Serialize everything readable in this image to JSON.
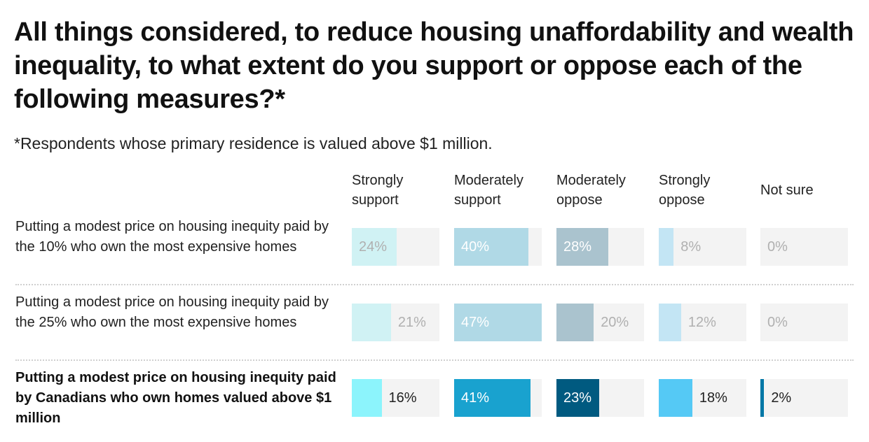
{
  "chart_data": {
    "type": "bar",
    "title": "All things considered, to reduce housing unaffordability and wealth inequality, to what extent do you support or oppose each of the following measures?*",
    "subtitle": "*Respondents whose primary residence is valued above $1 million.",
    "columns": [
      "Strongly support",
      "Moderately support",
      "Moderately oppose",
      "Strongly oppose",
      "Not sure"
    ],
    "column_colors": [
      "#8cf4fc",
      "#19a2cf",
      "#005a80",
      "#55c9f5",
      "#0077a6"
    ],
    "faded_colors": [
      "#d0f2f4",
      "#b0d9e6",
      "#aac3ce",
      "#c3e5f4",
      "#b3d6e4"
    ],
    "xlim": [
      0,
      47
    ],
    "rows": [
      {
        "label": "Putting a modest price on housing inequity paid by the 10% who own the most expensive homes",
        "highlight": false,
        "values": [
          24,
          40,
          28,
          8,
          0
        ]
      },
      {
        "label": "Putting a modest price on housing inequity paid by the 25% who own the most expensive homes",
        "highlight": false,
        "values": [
          21,
          47,
          20,
          12,
          0
        ]
      },
      {
        "label": "Putting a modest price on housing inequity paid by Canadians who own homes valued above $1 million",
        "highlight": true,
        "values": [
          16,
          41,
          23,
          18,
          2
        ]
      }
    ]
  }
}
